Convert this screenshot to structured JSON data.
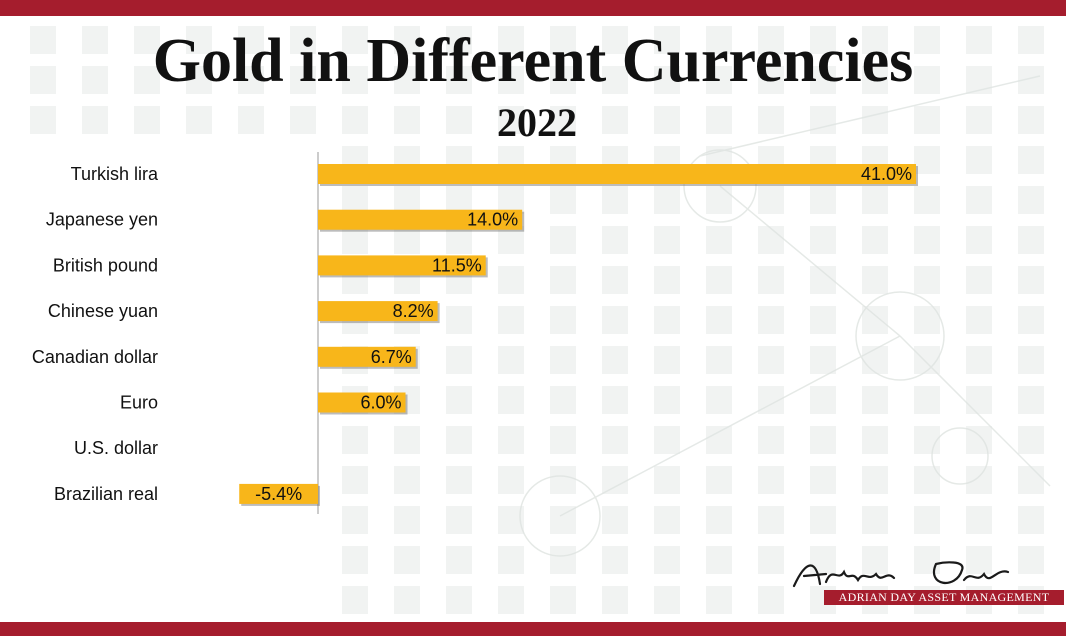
{
  "title": "Gold in Different Currencies",
  "subtitle": "2022",
  "brand": {
    "logo_text": "ADRIAN DAY ASSET MANAGEMENT",
    "signature": "Adrian Day"
  },
  "colors": {
    "bar": "#f8b61a",
    "band": "#a51d2d"
  },
  "chart_data": {
    "type": "bar",
    "orientation": "horizontal",
    "title": "Gold in Different Currencies",
    "subtitle": "2022",
    "categories": [
      "Turkish lira",
      "Japanese yen",
      "British pound",
      "Chinese yuan",
      "Canadian dollar",
      "Euro",
      "U.S. dollar",
      "Brazilian real"
    ],
    "values": [
      41.0,
      14.0,
      11.5,
      8.2,
      6.7,
      6.0,
      0.0,
      -5.4
    ],
    "labels": [
      "41.0%",
      "14.0%",
      "11.5%",
      "8.2%",
      "6.7%",
      "6.0%",
      "",
      "-5.4%"
    ],
    "unit": "%",
    "xlim": [
      -5.4,
      41.0
    ],
    "grid": false,
    "legend": "none"
  }
}
